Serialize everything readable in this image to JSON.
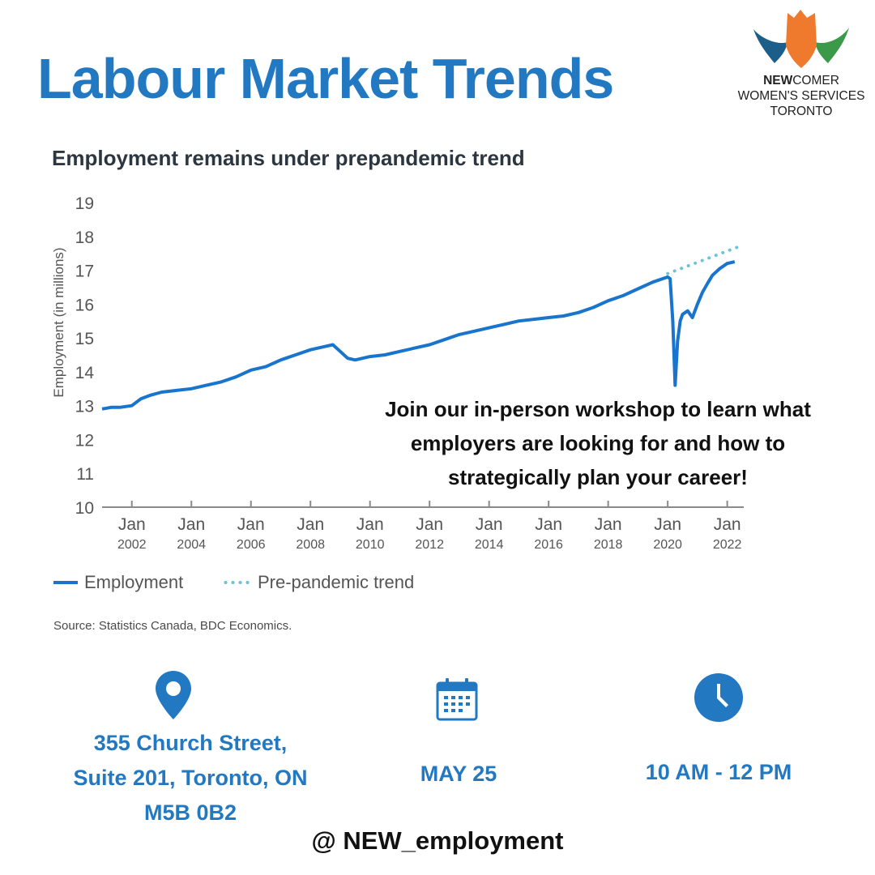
{
  "header": {
    "title": "Labour Market Trends"
  },
  "logo": {
    "name_bold": "NEW",
    "name_rest": "COMER",
    "line2": "WOMEN'S SERVICES",
    "line3": "TORONTO",
    "colors": {
      "orange": "#ef7a2e",
      "blue": "#1b5e8a",
      "green": "#3a9a4a"
    }
  },
  "chart_data": {
    "type": "line",
    "title": "Employment remains under prepandemic trend",
    "ylabel": "Employment (in millions)",
    "ylim": [
      10,
      19
    ],
    "yticks": [
      "10",
      "11",
      "12",
      "13",
      "14",
      "15",
      "16",
      "17",
      "18",
      "19"
    ],
    "xlim": [
      2001.0,
      2022.5
    ],
    "xticks": [
      {
        "value": 2002,
        "month": "Jan",
        "year": "2002"
      },
      {
        "value": 2004,
        "month": "Jan",
        "year": "2004"
      },
      {
        "value": 2006,
        "month": "Jan",
        "year": "2006"
      },
      {
        "value": 2008,
        "month": "Jan",
        "year": "2008"
      },
      {
        "value": 2010,
        "month": "Jan",
        "year": "2010"
      },
      {
        "value": 2012,
        "month": "Jan",
        "year": "2012"
      },
      {
        "value": 2014,
        "month": "Jan",
        "year": "2014"
      },
      {
        "value": 2016,
        "month": "Jan",
        "year": "2016"
      },
      {
        "value": 2018,
        "month": "Jan",
        "year": "2018"
      },
      {
        "value": 2020,
        "month": "Jan",
        "year": "2020"
      },
      {
        "value": 2022,
        "month": "Jan",
        "year": "2022"
      }
    ],
    "series": [
      {
        "name": "Employment",
        "color": "#1874cd",
        "style": "solid",
        "x": [
          2001.0,
          2001.3,
          2001.6,
          2002.0,
          2002.3,
          2002.6,
          2003.0,
          2003.5,
          2004.0,
          2004.5,
          2005.0,
          2005.5,
          2006.0,
          2006.5,
          2007.0,
          2007.5,
          2008.0,
          2008.5,
          2008.75,
          2009.0,
          2009.25,
          2009.5,
          2010.0,
          2010.5,
          2011.0,
          2011.5,
          2012.0,
          2012.5,
          2013.0,
          2013.5,
          2014.0,
          2014.5,
          2015.0,
          2015.5,
          2016.0,
          2016.5,
          2017.0,
          2017.5,
          2018.0,
          2018.5,
          2019.0,
          2019.5,
          2020.0,
          2020.08,
          2020.17,
          2020.25,
          2020.33,
          2020.42,
          2020.5,
          2020.67,
          2020.83,
          2021.0,
          2021.17,
          2021.33,
          2021.5,
          2021.75,
          2022.0,
          2022.25
        ],
        "y": [
          12.9,
          12.95,
          12.95,
          13.0,
          13.2,
          13.3,
          13.4,
          13.45,
          13.5,
          13.6,
          13.7,
          13.85,
          14.05,
          14.15,
          14.35,
          14.5,
          14.65,
          14.75,
          14.8,
          14.6,
          14.4,
          14.35,
          14.45,
          14.5,
          14.6,
          14.7,
          14.8,
          14.95,
          15.1,
          15.2,
          15.3,
          15.4,
          15.5,
          15.55,
          15.6,
          15.65,
          15.75,
          15.9,
          16.1,
          16.25,
          16.45,
          16.65,
          16.8,
          16.75,
          15.5,
          13.6,
          14.9,
          15.5,
          15.7,
          15.8,
          15.6,
          16.0,
          16.35,
          16.6,
          16.85,
          17.05,
          17.2,
          17.25
        ]
      },
      {
        "name": "Pre-pandemic trend",
        "color": "#6ac3d8",
        "style": "dotted",
        "x": [
          2020.0,
          2022.4
        ],
        "y": [
          16.9,
          17.7
        ]
      }
    ],
    "legend": [
      {
        "label": "Employment",
        "style": "solid",
        "color": "#1874cd"
      },
      {
        "label": "Pre-pandemic trend",
        "style": "dotted",
        "color": "#6ac3d8"
      }
    ],
    "legend_position": "bottom-left",
    "grid": false,
    "source": "Source: Statistics Canada, BDC Economics."
  },
  "cta": {
    "lines": [
      "Join our in-person workshop to learn what",
      "employers are looking for and how to",
      "strategically plan your career!"
    ]
  },
  "details": {
    "location": {
      "icon": "map-pin-icon",
      "lines": [
        "355 Church Street,",
        "Suite 201, Toronto, ON",
        "M5B 0B2"
      ]
    },
    "date": {
      "icon": "calendar-icon",
      "text": "MAY 25"
    },
    "time": {
      "icon": "clock-icon",
      "text": "10 AM - 12 PM"
    },
    "accent_color": "#2378c2"
  },
  "footer": {
    "handle": "@ NEW_employment"
  }
}
